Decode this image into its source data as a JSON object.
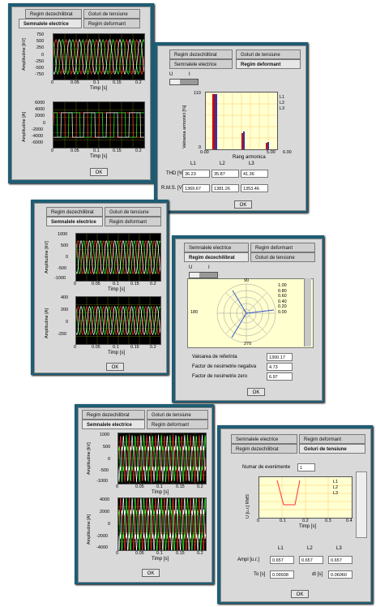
{
  "colors": {
    "window_bg": "#1f5d74",
    "panel_bg": "#d9d9d9",
    "graph_bg": "#000000",
    "l1": "#ff3333",
    "l2": "#33ff33",
    "l3": "#ffffff",
    "grid": "#a0a000"
  },
  "tabs": {
    "regim_dezechilibrat": "Regim dezechilibrat",
    "goluri_tensiune": "Goluri de tensiune",
    "semnalele_electrice": "Semnalele electrice",
    "regim_deformant": "Regim deformant"
  },
  "ok_label": "OK",
  "win1": {
    "chart_data": [
      {
        "type": "line",
        "ylabel": "Amplitudine [kV]",
        "xlabel": "Timp [s]",
        "xticks": [
          "0",
          "0.05",
          "0.1",
          "0.15",
          "0.2"
        ],
        "yticks": [
          "750",
          "500",
          "250",
          "0",
          "-250",
          "-500",
          "-750"
        ]
      },
      {
        "type": "line",
        "ylabel": "Amplitudine [A]",
        "xlabel": "Timp [s]",
        "xticks": [
          "0",
          "0.05",
          "0.1",
          "0.15",
          "0.2"
        ],
        "yticks": [
          "6000",
          "4000",
          "2000",
          "0",
          "-2000",
          "-4000",
          "-6000"
        ]
      }
    ]
  },
  "win2": {
    "toggle_u": "U",
    "toggle_i": "I",
    "chart_data": {
      "type": "bar",
      "ylabel": "Valoarea armonici [%]",
      "xlabel": "Rang armonica",
      "xticks": [
        "0.00",
        "5.00",
        "6.00"
      ],
      "yticks": [
        "110",
        "80",
        "60",
        "40",
        "20",
        "0"
      ],
      "legend": [
        "L1",
        "L2",
        "L3"
      ]
    },
    "col_headers": [
      "L1",
      "L2",
      "L3"
    ],
    "thd_label": "THD [%]",
    "thd_values": [
      "36.23",
      "35.87",
      "41.36"
    ],
    "rms_label": "R.M.S. [V]",
    "rms_values": [
      "1369.67",
      "1381.26",
      "1353.46"
    ]
  },
  "win3": {
    "chart_data": [
      {
        "type": "line",
        "ylabel": "Amplitudine [kV]",
        "xlabel": "Timp [s]",
        "xticks": [
          "0",
          "0.05",
          "0.1",
          "0.15",
          "0.2"
        ],
        "yticks": [
          "1000",
          "500",
          "0",
          "-500",
          "-1000"
        ]
      },
      {
        "type": "line",
        "ylabel": "Amplitudine [A]",
        "xlabel": "Timp [s]",
        "xticks": [
          "0",
          "0.05",
          "0.1",
          "0.15",
          "0.2"
        ],
        "yticks": [
          "400",
          "200",
          "0",
          "-200"
        ]
      }
    ]
  },
  "win4": {
    "toggle_u": "U",
    "toggle_i": "I",
    "polar_labels": {
      "top": "90",
      "left": "180",
      "bottom": "270"
    },
    "radial_ticks": [
      "1.00",
      "0.80",
      "0.60",
      "0.40",
      "0.20",
      "0.00"
    ],
    "ref_label": "Valoarea de referinta",
    "ref_value": "1300.17",
    "neg_label": "Factor de nesimetrie negativa",
    "neg_value": "4.73",
    "zero_label": "Factor de nesimetrie zero",
    "zero_value": "6.97"
  },
  "win5": {
    "chart_data": [
      {
        "type": "line",
        "ylabel": "Amplitudine [kV]",
        "xlabel": "Timp [s]",
        "xticks": [
          "0",
          "0.05",
          "0.1",
          "0.15",
          "0.2"
        ],
        "yticks": [
          "1000",
          "500",
          "0",
          "-500",
          "-1000"
        ]
      },
      {
        "type": "line",
        "ylabel": "Amplitudine [A]",
        "xlabel": "Timp [s]",
        "xticks": [
          "0",
          "0.05",
          "0.1",
          "0.15",
          "0.2"
        ],
        "yticks": [
          "4000",
          "2000",
          "0",
          "-2000",
          "-4000"
        ]
      }
    ]
  },
  "win6": {
    "events_label": "Numar de evenimente",
    "events_value": "1",
    "nr_label": "Nr",
    "chart_data": {
      "type": "line",
      "ylabel": "U [u.r.] RMS",
      "xlabel": "Timp [s]",
      "xticks": [
        "0",
        "0.1",
        "0.2",
        "0.3",
        "0.4"
      ],
      "yticks": [
        "1",
        "0.8",
        "0.6",
        "0.4",
        "0.2",
        "0"
      ],
      "legend": [
        "L1",
        "L2",
        "L3"
      ]
    },
    "col_headers": [
      "L1",
      "L2",
      "L3"
    ],
    "ampl_label": "Ampl [u.r.]",
    "ampl_values": [
      "0.657",
      "0.657",
      "0.657"
    ],
    "to_label": "To [s]",
    "to_value": "0.09938",
    "dt_label": "dt [s]",
    "dt_value": "0.06060"
  }
}
